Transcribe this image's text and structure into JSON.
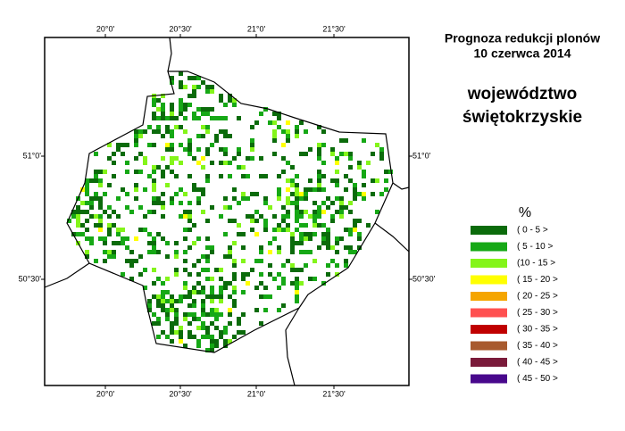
{
  "map": {
    "title": [
      "Prognoza redukcji plonów",
      "10 czerwca 2014"
    ],
    "region": [
      "województwo",
      "świętokrzyskie"
    ],
    "lon_ticks": [
      "20°0'",
      "20°30'",
      "21°0'",
      "21°30'"
    ],
    "lat_ticks": [
      "51°0'",
      "50°30'"
    ],
    "legend": {
      "title": "%",
      "items": [
        {
          "label": "( 0 - 5 >",
          "color": "#0b6b0b"
        },
        {
          "label": "( 5 - 10 >",
          "color": "#16a816"
        },
        {
          "label": "(10 - 15 >",
          "color": "#84f51a"
        },
        {
          "label": "( 15 - 20 >",
          "color": "#ffff00"
        },
        {
          "label": "( 20 - 25 >",
          "color": "#f5a500"
        },
        {
          "label": "( 25 - 30 >",
          "color": "#ff5050"
        },
        {
          "label": "( 30 - 35 >",
          "color": "#c00000"
        },
        {
          "label": "( 35 - 40 >",
          "color": "#a85a2e"
        },
        {
          "label": "( 40 - 45 >",
          "color": "#7a1a3a"
        },
        {
          "label": "( 45 - 50 >",
          "color": "#48088c"
        }
      ]
    }
  }
}
